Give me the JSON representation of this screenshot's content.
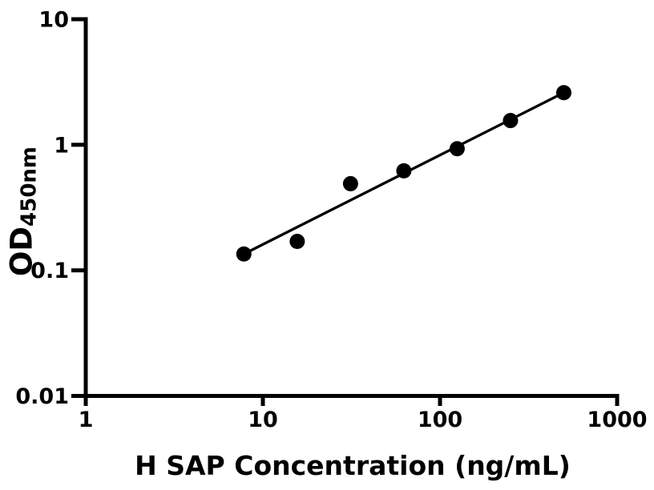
{
  "figure": {
    "background_color": "#ffffff",
    "ink_color": "#000000"
  },
  "chart_data": {
    "type": "scatter",
    "title": "",
    "xlabel": "H SAP Concentration (ng/mL)",
    "ylabel_main": "OD",
    "ylabel_sub": "450nm",
    "x_scale": "log",
    "y_scale": "log",
    "xlim": [
      1,
      1000
    ],
    "ylim": [
      0.01,
      10
    ],
    "grid": false,
    "legend": null,
    "x_ticks": [
      {
        "value": 1,
        "label": "1"
      },
      {
        "value": 10,
        "label": "10"
      },
      {
        "value": 100,
        "label": "100"
      },
      {
        "value": 1000,
        "label": "1000"
      }
    ],
    "y_ticks": [
      {
        "value": 0.01,
        "label": "0.01"
      },
      {
        "value": 0.1,
        "label": "0.1"
      },
      {
        "value": 1,
        "label": "1"
      },
      {
        "value": 10,
        "label": "10"
      }
    ],
    "series": [
      {
        "name": "fit-line",
        "type": "line",
        "color": "#000000",
        "points": [
          {
            "x": 7.81,
            "y": 0.135
          },
          {
            "x": 500,
            "y": 2.6
          }
        ]
      },
      {
        "name": "standard-points",
        "type": "scatter",
        "marker": "circle",
        "color": "#000000",
        "points": [
          {
            "x": 7.81,
            "y": 0.135
          },
          {
            "x": 15.63,
            "y": 0.17
          },
          {
            "x": 31.25,
            "y": 0.49
          },
          {
            "x": 62.5,
            "y": 0.62
          },
          {
            "x": 125,
            "y": 0.93
          },
          {
            "x": 250,
            "y": 1.56
          },
          {
            "x": 500,
            "y": 2.6
          }
        ]
      }
    ]
  }
}
